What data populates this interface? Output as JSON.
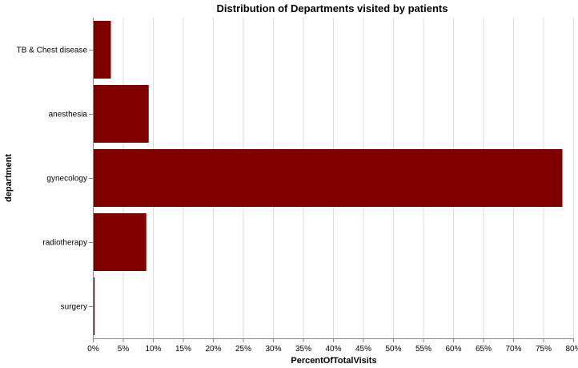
{
  "chart_data": {
    "type": "bar",
    "orientation": "horizontal",
    "title": "Distribution of Departments visited by patients",
    "xlabel": "PercentOfTotalVisits",
    "ylabel": "department",
    "categories": [
      "TB & Chest disease",
      "anesthesia",
      "gynecology",
      "radiotherapy",
      "surgery"
    ],
    "values": [
      3.0,
      9.3,
      78.2,
      8.9,
      0.3
    ],
    "xlim": [
      0,
      80
    ],
    "xticks": [
      0,
      5,
      10,
      15,
      20,
      25,
      30,
      35,
      40,
      45,
      50,
      55,
      60,
      65,
      70,
      75,
      80
    ],
    "xtick_format": "percent",
    "grid": true,
    "colors": {
      "bar": "#800000",
      "grid": "#dddddd",
      "axis": "#888888"
    }
  }
}
